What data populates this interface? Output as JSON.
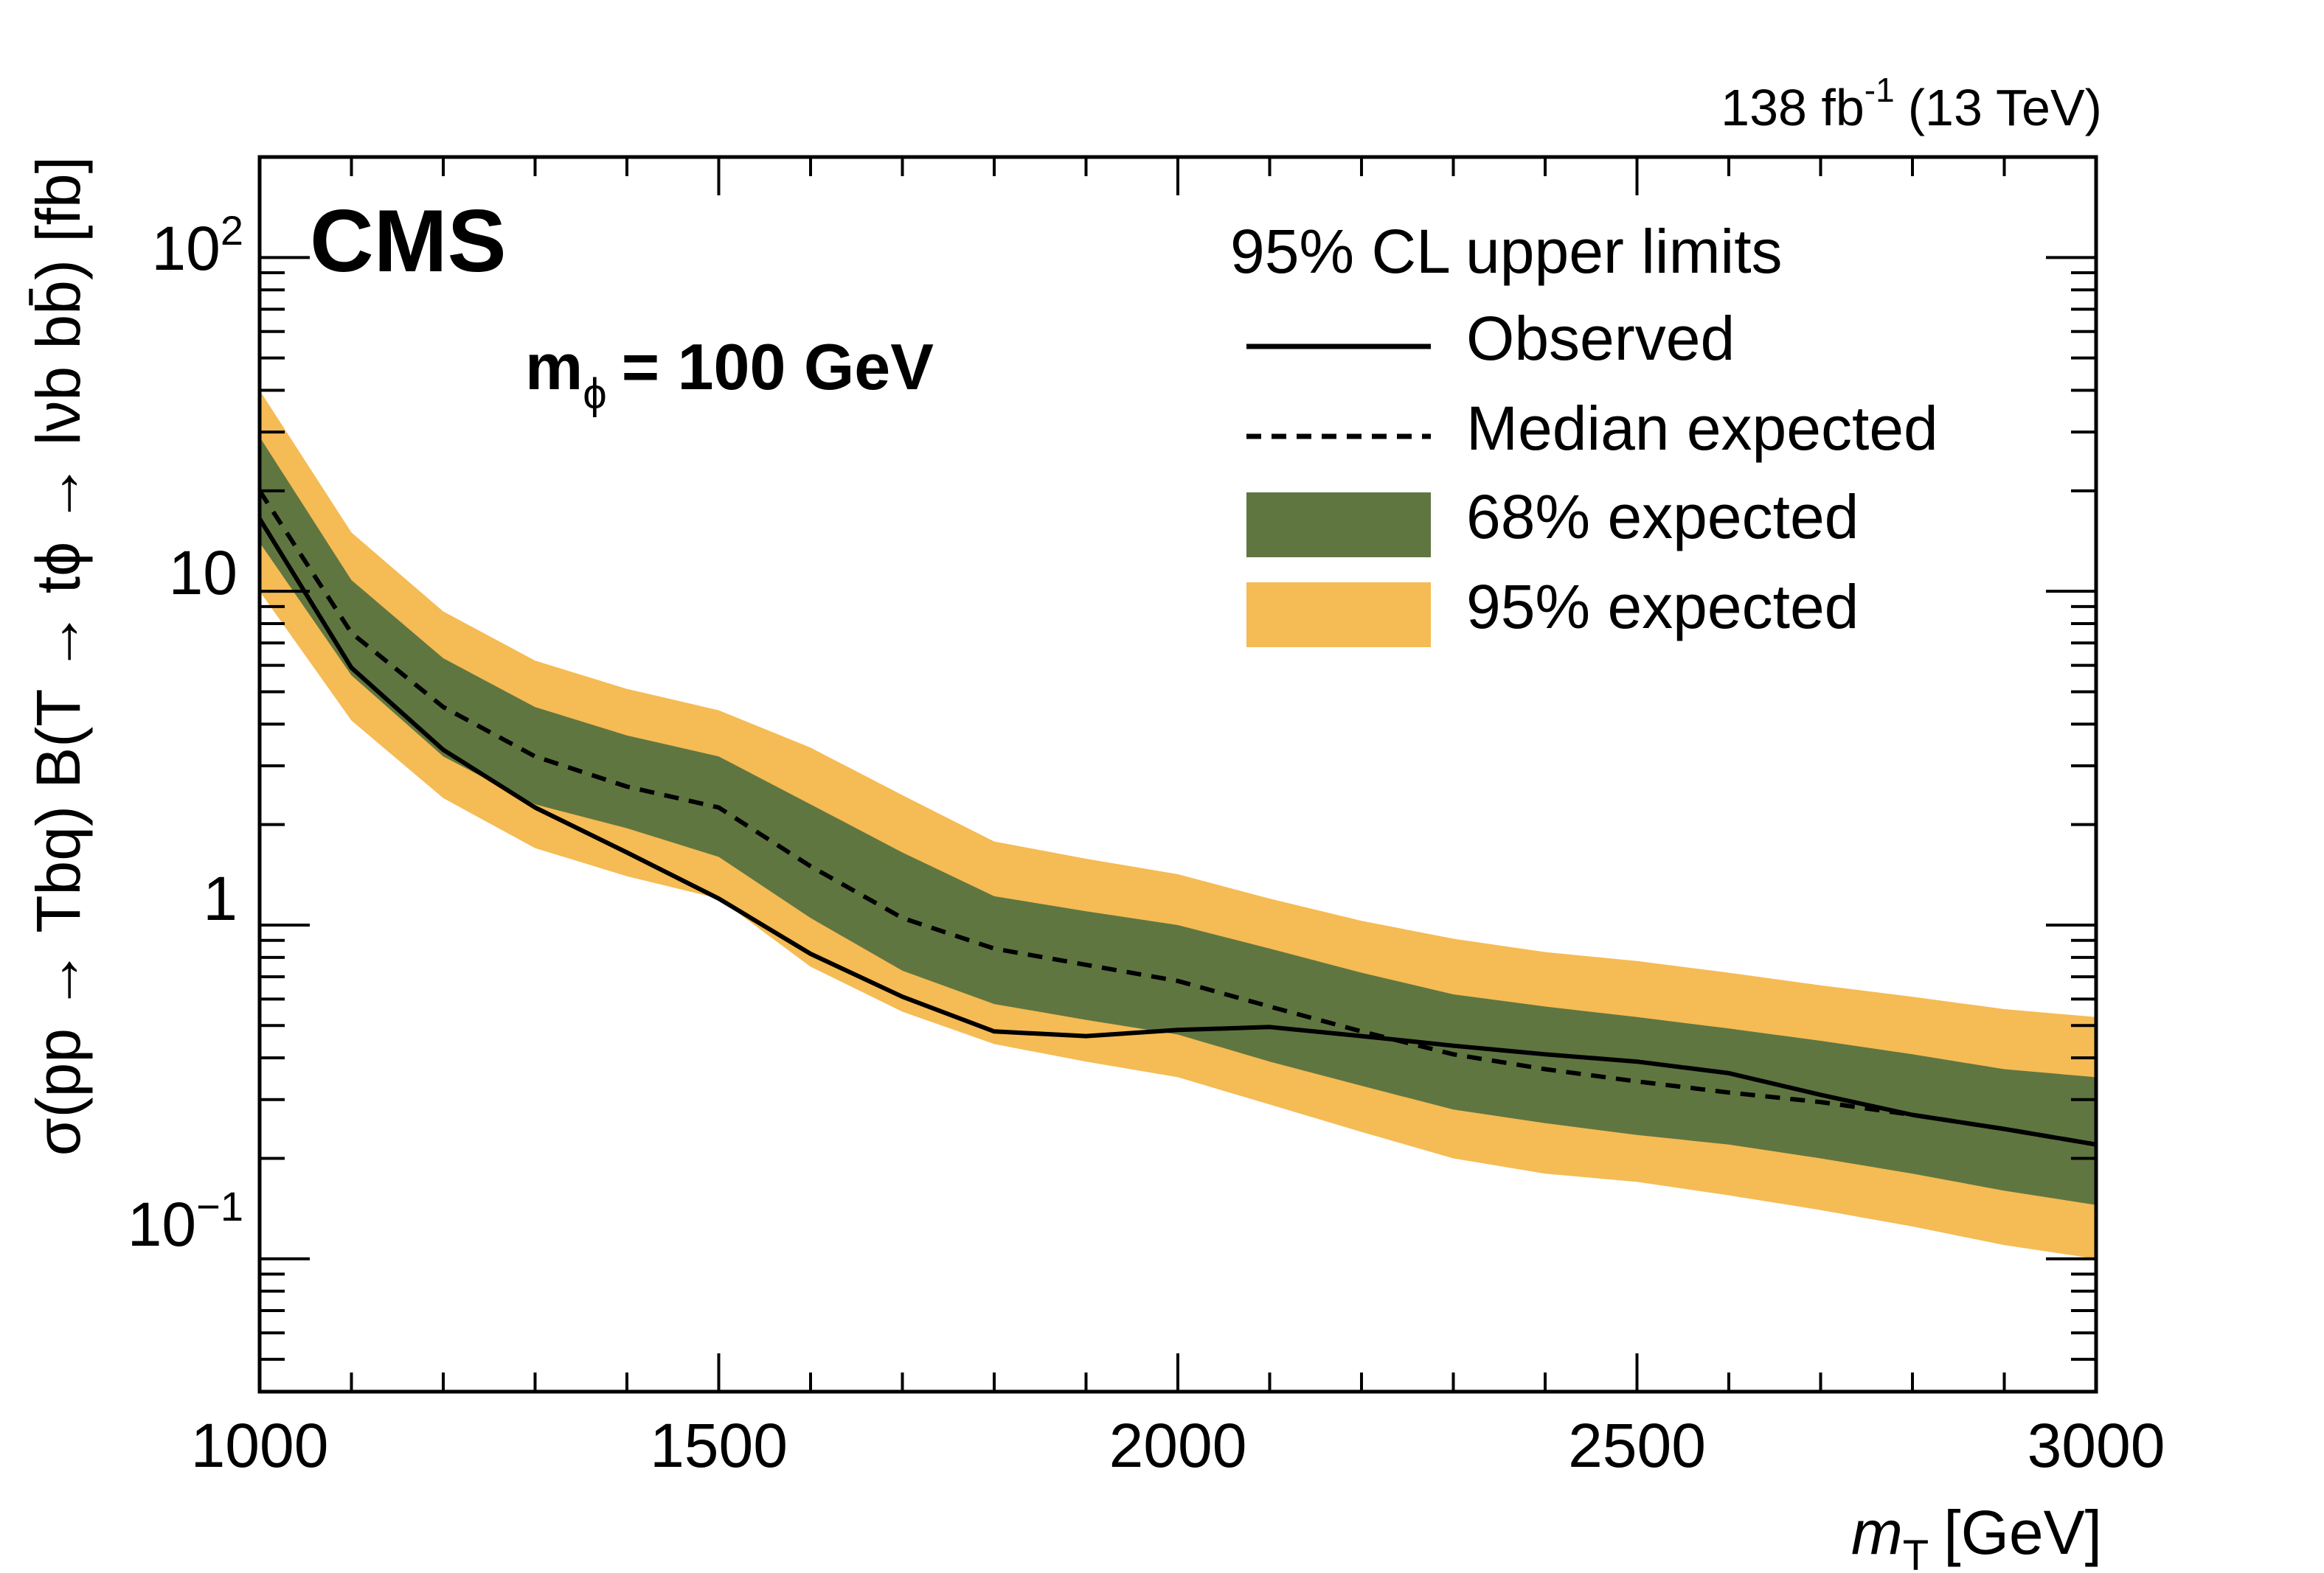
{
  "header": {
    "experiment": "CMS",
    "luminosity_value": "138 fb",
    "luminosity_exp": "-1",
    "energy": "(13 TeV)",
    "mass_label_main": "m",
    "mass_label_sub": "ϕ",
    "mass_label_value": "= 100 GeV"
  },
  "axes": {
    "x_title_var": "m",
    "x_title_sub": "T",
    "x_title_unit": "[GeV]",
    "y_title": "σ(pp → Tbq)  B(T → tϕ → lνb  bb̄) [fb]"
  },
  "ticks": {
    "x": [
      "1000",
      "1500",
      "2000",
      "2500",
      "3000"
    ],
    "y_1": "1",
    "y_10": "10",
    "y_100_base": "10",
    "y_100_exp": "2",
    "y_01_base": "10",
    "y_01_exp": "−1"
  },
  "legend": {
    "header": "95% CL upper limits",
    "observed": "Observed",
    "median": "Median expected",
    "band68": "68% expected",
    "band95": "95% expected"
  },
  "colors": {
    "band68": "#607641",
    "band95": "#F5BB54",
    "line": "#000000"
  },
  "chart_data": {
    "type": "line",
    "title": "",
    "xlabel": "m_T [GeV]",
    "ylabel": "σ(pp → Tbq) B(T → tϕ → lνb bb̄) [fb]",
    "xlim": [
      1000,
      3000
    ],
    "ylim": [
      0.04,
      200
    ],
    "yscale": "log",
    "legend_position": "top-right",
    "x": [
      1000,
      1100,
      1200,
      1300,
      1400,
      1500,
      1600,
      1700,
      1800,
      1900,
      2000,
      2100,
      2200,
      2300,
      2400,
      2500,
      2600,
      2700,
      2800,
      2900,
      3000
    ],
    "series": [
      {
        "name": "Observed",
        "style": "solid",
        "values": [
          16.5,
          5.9,
          3.35,
          2.25,
          1.65,
          1.2,
          0.82,
          0.61,
          0.48,
          0.465,
          0.485,
          0.495,
          0.465,
          0.435,
          0.41,
          0.39,
          0.36,
          0.31,
          0.27,
          0.245,
          0.22
        ]
      },
      {
        "name": "Median expected",
        "style": "dashed",
        "values": [
          20.0,
          7.5,
          4.5,
          3.2,
          2.6,
          2.25,
          1.5,
          1.05,
          0.85,
          0.76,
          0.68,
          0.57,
          0.48,
          0.41,
          0.37,
          0.34,
          0.315,
          0.295,
          0.27,
          0.245,
          0.22
        ]
      },
      {
        "name": "68% expected",
        "style": "band",
        "lower": [
          14.0,
          5.6,
          3.2,
          2.3,
          1.95,
          1.6,
          1.05,
          0.73,
          0.58,
          0.52,
          0.47,
          0.39,
          0.33,
          0.28,
          0.255,
          0.235,
          0.22,
          0.2,
          0.18,
          0.16,
          0.145
        ],
        "upper": [
          29.0,
          10.8,
          6.3,
          4.5,
          3.7,
          3.2,
          2.3,
          1.65,
          1.22,
          1.1,
          1.0,
          0.85,
          0.72,
          0.62,
          0.57,
          0.53,
          0.49,
          0.45,
          0.41,
          0.37,
          0.35
        ]
      },
      {
        "name": "95% expected",
        "style": "band",
        "lower": [
          10.0,
          4.1,
          2.4,
          1.7,
          1.4,
          1.2,
          0.75,
          0.55,
          0.44,
          0.39,
          0.35,
          0.29,
          0.24,
          0.2,
          0.18,
          0.17,
          0.155,
          0.14,
          0.125,
          0.11,
          0.1
        ],
        "upper": [
          40.0,
          15.0,
          8.7,
          6.2,
          5.1,
          4.4,
          3.4,
          2.45,
          1.78,
          1.58,
          1.42,
          1.2,
          1.03,
          0.91,
          0.83,
          0.78,
          0.72,
          0.66,
          0.61,
          0.56,
          0.53
        ]
      }
    ]
  }
}
